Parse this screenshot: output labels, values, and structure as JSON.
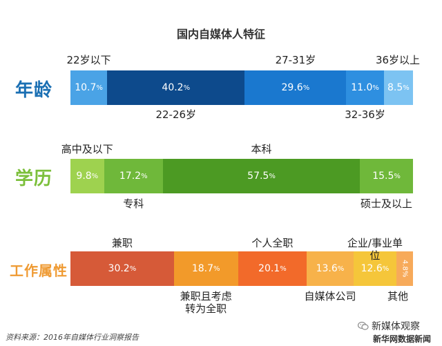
{
  "title": "国内自媒体人特征",
  "source": "资料来源：2016年自媒体行业洞察报告",
  "brand": {
    "name": "新媒体观察",
    "sub": "新华网数据新闻"
  },
  "chart_data": [
    {
      "type": "bar",
      "group": "年龄",
      "group_color": "#1a6fb3",
      "categories": [
        "22岁以下",
        "22-26岁",
        "27-31岁",
        "32-36岁",
        "36岁以上"
      ],
      "values": [
        10.7,
        40.2,
        29.6,
        11.0,
        8.5
      ],
      "colors": [
        "#4aa3e6",
        "#0d4a8c",
        "#1a78cf",
        "#2e8fe0",
        "#7cc3f2"
      ],
      "label_side": [
        "top",
        "bottom",
        "top",
        "bottom",
        "top"
      ]
    },
    {
      "type": "bar",
      "group": "学历",
      "group_color": "#7bbf3a",
      "categories": [
        "高中及以下",
        "专科",
        "本科",
        "硕士及以上"
      ],
      "values": [
        9.8,
        17.2,
        57.5,
        15.5
      ],
      "colors": [
        "#9ed24f",
        "#6fb83a",
        "#4c9a23",
        "#6fb83a"
      ],
      "label_side": [
        "top",
        "bottom",
        "top",
        "bottom"
      ]
    },
    {
      "type": "bar",
      "group": "工作属性",
      "group_color": "#ef9a32",
      "categories": [
        "兼职",
        "兼职且考虑转为全职",
        "个人全职",
        "自媒体公司",
        "企业/事业单位",
        "其他"
      ],
      "values": [
        30.2,
        18.7,
        20.1,
        13.6,
        12.6,
        4.8
      ],
      "colors": [
        "#d65a38",
        "#f29a2a",
        "#f26a2a",
        "#f7b24a",
        "#f5c63a",
        "#f7aa5a"
      ],
      "label_side": [
        "top",
        "bottom",
        "top",
        "bottom",
        "top",
        "bottom"
      ]
    }
  ]
}
